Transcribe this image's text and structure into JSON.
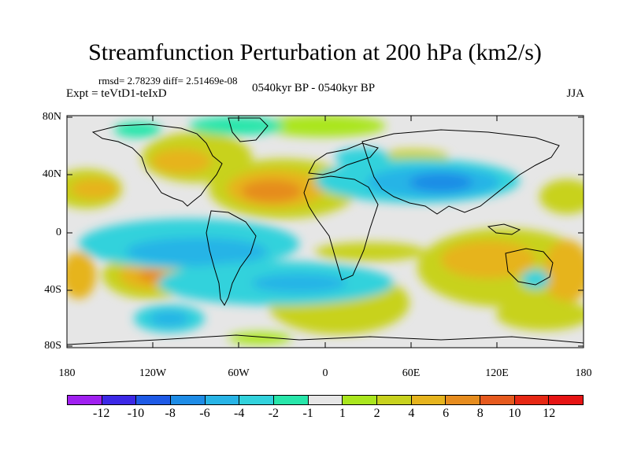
{
  "title": "Streamfunction Perturbation at 200 hPa (km2/s)",
  "stats": "rmsd= 2.78239 diff= 2.51469e-08",
  "experiment": "Expt = teVtD1-teIxD",
  "period": "0540kyr BP - 0540kyr BP",
  "season": "JJA",
  "lat_labels": [
    "80N",
    "40N",
    "0",
    "40S",
    "80S"
  ],
  "lon_labels": [
    "180",
    "120W",
    "60W",
    "0",
    "60E",
    "120E",
    "180"
  ],
  "colorbar": {
    "labels": [
      "-12",
      "-10",
      "-8",
      "-6",
      "-4",
      "-2",
      "-1",
      "1",
      "2",
      "4",
      "6",
      "8",
      "10",
      "12"
    ],
    "colors": [
      "#a020f0",
      "#3c28e6",
      "#1e5ae6",
      "#1e8ce6",
      "#28b4e6",
      "#32d2dc",
      "#28e6aa",
      "#e6e6e6",
      "#aae61e",
      "#c8d21e",
      "#e6b41e",
      "#e68c1e",
      "#e65a1e",
      "#e62814",
      "#e61414"
    ]
  },
  "map_colors": {
    "ocean": "#e6e6e6",
    "coast": "#000000"
  }
}
